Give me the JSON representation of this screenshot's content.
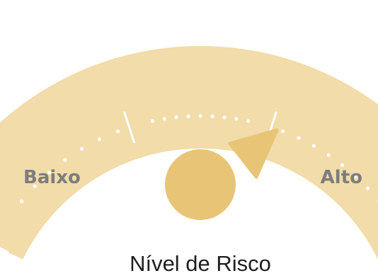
{
  "gauge": {
    "low_label": "Baixo",
    "high_label": "Alto",
    "caption": "Nível de Risco"
  },
  "colors": {
    "band": "#f1dcaa",
    "pointer": "#e8c576",
    "marks": "#ffffff",
    "label_text": "#7d7d7d",
    "caption_text": "#1f1f1f"
  }
}
